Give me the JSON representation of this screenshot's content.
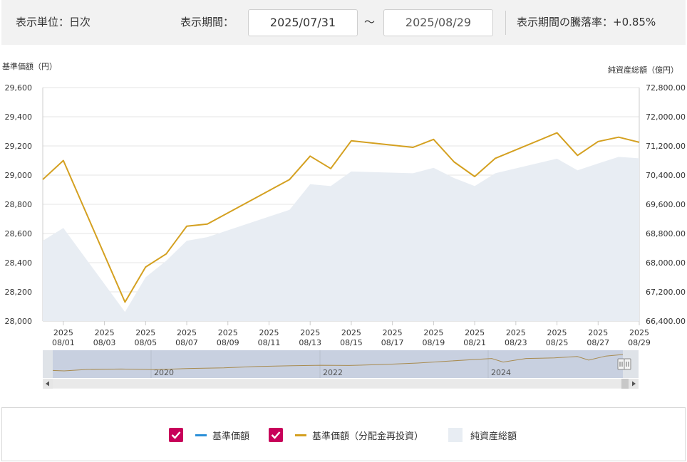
{
  "controls": {
    "unit_label": "表示単位：日次",
    "period_label": "表示期間：",
    "start_date": "2025/07/31",
    "separator": "～",
    "end_date": "2025/08/29",
    "change_label": "表示期間の騰落率：+0.85%"
  },
  "legend": {
    "items": [
      {
        "label": "基準価額",
        "color": "#2a8fd8",
        "checked": true
      },
      {
        "label": "基準価額（分配金再投資）",
        "color": "#d4a020",
        "checked": true
      },
      {
        "label": "純資産総額",
        "color": "#e8edf3"
      }
    ]
  },
  "chart_data": {
    "type": "line",
    "left_axis_label": "基準価額（円）",
    "right_axis_label": "純資産総額（億円）",
    "left_ticks": [
      "29,600",
      "29,400",
      "29,200",
      "29,000",
      "28,800",
      "28,600",
      "28,400",
      "28,200",
      "28,000"
    ],
    "right_ticks": [
      "72,800.00",
      "72,000.00",
      "71,200.00",
      "70,400.00",
      "69,600.00",
      "68,800.00",
      "68,000.00",
      "67,200.00",
      "66,400.00"
    ],
    "y_left_range": [
      28000,
      29600
    ],
    "y_right_range": [
      66400,
      72800
    ],
    "x_tick_labels": [
      [
        "2025",
        "08/01"
      ],
      [
        "2025",
        "08/03"
      ],
      [
        "2025",
        "08/05"
      ],
      [
        "2025",
        "08/07"
      ],
      [
        "2025",
        "08/09"
      ],
      [
        "2025",
        "08/11"
      ],
      [
        "2025",
        "08/13"
      ],
      [
        "2025",
        "08/15"
      ],
      [
        "2025",
        "08/17"
      ],
      [
        "2025",
        "08/19"
      ],
      [
        "2025",
        "08/21"
      ],
      [
        "2025",
        "08/23"
      ],
      [
        "2025",
        "08/25"
      ],
      [
        "2025",
        "08/27"
      ],
      [
        "2025",
        "08/29"
      ]
    ],
    "x_range": [
      "2025-07-31",
      "2025-08-29"
    ],
    "series": [
      {
        "name": "基準価額（分配金再投資）",
        "axis": "left",
        "color": "#d4a020",
        "points": [
          [
            "2025-07-31",
            28970
          ],
          [
            "2025-08-01",
            29100
          ],
          [
            "2025-08-04",
            28130
          ],
          [
            "2025-08-05",
            28370
          ],
          [
            "2025-08-06",
            28460
          ],
          [
            "2025-08-07",
            28650
          ],
          [
            "2025-08-08",
            28665
          ],
          [
            "2025-08-12",
            28970
          ],
          [
            "2025-08-13",
            29130
          ],
          [
            "2025-08-14",
            29045
          ],
          [
            "2025-08-15",
            29235
          ],
          [
            "2025-08-18",
            29190
          ],
          [
            "2025-08-19",
            29245
          ],
          [
            "2025-08-20",
            29090
          ],
          [
            "2025-08-21",
            28990
          ],
          [
            "2025-08-22",
            29115
          ],
          [
            "2025-08-25",
            29290
          ],
          [
            "2025-08-26",
            29135
          ],
          [
            "2025-08-27",
            29230
          ],
          [
            "2025-08-28",
            29260
          ],
          [
            "2025-08-29",
            29225
          ]
        ]
      },
      {
        "name": "純資産総額",
        "axis": "right",
        "type": "area",
        "color": "#e8edf3",
        "points": [
          [
            "2025-07-31",
            68600
          ],
          [
            "2025-08-01",
            68950
          ],
          [
            "2025-08-04",
            66650
          ],
          [
            "2025-08-05",
            67600
          ],
          [
            "2025-08-06",
            68050
          ],
          [
            "2025-08-07",
            68600
          ],
          [
            "2025-08-08",
            68700
          ],
          [
            "2025-08-12",
            69450
          ],
          [
            "2025-08-13",
            70150
          ],
          [
            "2025-08-14",
            70100
          ],
          [
            "2025-08-15",
            70500
          ],
          [
            "2025-08-18",
            70450
          ],
          [
            "2025-08-19",
            70600
          ],
          [
            "2025-08-20",
            70320
          ],
          [
            "2025-08-21",
            70100
          ],
          [
            "2025-08-22",
            70450
          ],
          [
            "2025-08-25",
            70850
          ],
          [
            "2025-08-26",
            70530
          ],
          [
            "2025-08-27",
            70720
          ],
          [
            "2025-08-28",
            70900
          ],
          [
            "2025-08-29",
            70860
          ]
        ]
      }
    ],
    "navigator": {
      "year_labels": [
        "2020",
        "2022",
        "2024"
      ],
      "overview": [
        [
          0,
          0.2
        ],
        [
          0.02,
          0.18
        ],
        [
          0.06,
          0.25
        ],
        [
          0.12,
          0.27
        ],
        [
          0.18,
          0.24
        ],
        [
          0.24,
          0.3
        ],
        [
          0.3,
          0.33
        ],
        [
          0.36,
          0.4
        ],
        [
          0.42,
          0.44
        ],
        [
          0.47,
          0.46
        ],
        [
          0.52,
          0.45
        ],
        [
          0.58,
          0.5
        ],
        [
          0.64,
          0.57
        ],
        [
          0.7,
          0.68
        ],
        [
          0.74,
          0.75
        ],
        [
          0.77,
          0.8
        ],
        [
          0.79,
          0.62
        ],
        [
          0.83,
          0.8
        ],
        [
          0.88,
          0.83
        ],
        [
          0.92,
          0.9
        ],
        [
          0.94,
          0.72
        ],
        [
          0.97,
          0.92
        ],
        [
          1.0,
          1.0
        ]
      ]
    }
  }
}
